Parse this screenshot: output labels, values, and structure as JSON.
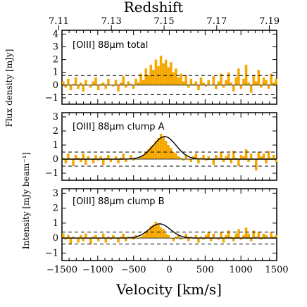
{
  "chart_data": [
    {
      "type": "bar",
      "panel": "total",
      "label": "[OIII] 88μm total",
      "xlim": [
        -1500,
        1500
      ],
      "ylim": [
        -1.5,
        4.3
      ],
      "yticks": [
        -1,
        0,
        1,
        2,
        3,
        4
      ],
      "bin_width": 35,
      "x": [
        -1500,
        -1465,
        -1430,
        -1395,
        -1360,
        -1325,
        -1290,
        -1255,
        -1220,
        -1185,
        -1150,
        -1115,
        -1080,
        -1045,
        -1010,
        -975,
        -940,
        -905,
        -870,
        -835,
        -800,
        -765,
        -730,
        -695,
        -660,
        -625,
        -590,
        -555,
        -520,
        -485,
        -450,
        -415,
        -380,
        -345,
        -310,
        -275,
        -240,
        -205,
        -170,
        -135,
        -100,
        -65,
        -30,
        5,
        40,
        75,
        110,
        145,
        180,
        215,
        250,
        285,
        320,
        355,
        390,
        425,
        460,
        495,
        530,
        565,
        600,
        635,
        670,
        705,
        740,
        775,
        810,
        845,
        880,
        915,
        950,
        985,
        1020,
        1055,
        1090,
        1125,
        1160,
        1195,
        1230,
        1265,
        1300,
        1335,
        1370,
        1405,
        1440,
        1475
      ],
      "values": [
        0.3,
        -0.2,
        0.5,
        -0.4,
        0.1,
        0.6,
        -0.3,
        0.2,
        -0.5,
        0.4,
        0.0,
        -0.2,
        0.3,
        0.6,
        -0.4,
        0.1,
        0.2,
        -0.3,
        0.5,
        0.0,
        -0.1,
        0.4,
        -0.5,
        0.2,
        0.7,
        -0.2,
        0.3,
        0.1,
        -0.3,
        0.5,
        0.2,
        0.9,
        0.4,
        1.3,
        0.8,
        1.6,
        1.2,
        2.0,
        1.5,
        2.3,
        1.7,
        2.0,
        1.4,
        1.8,
        1.0,
        1.3,
        0.6,
        0.9,
        0.3,
        0.8,
        -0.2,
        0.5,
        0.1,
        0.3,
        -0.4,
        0.6,
        0.2,
        -0.1,
        0.4,
        0.0,
        0.7,
        -0.3,
        0.3,
        0.9,
        -0.2,
        0.4,
        1.0,
        0.2,
        -0.5,
        0.6,
        1.3,
        -0.3,
        0.5,
        1.6,
        0.2,
        -0.6,
        0.8,
        0.3,
        1.2,
        -0.2,
        0.6,
        0.4,
        -0.3,
        0.9,
        0.2,
        0.5
      ],
      "noise_level": 0.75
    },
    {
      "type": "bar",
      "panel": "clump-a",
      "label": "[OIII] 88μm clump A",
      "xlim": [
        -1500,
        1500
      ],
      "ylim": [
        -1.5,
        3.3
      ],
      "yticks": [
        -1,
        0,
        1,
        2,
        3
      ],
      "bin_width": 35,
      "x": [
        -1500,
        -1465,
        -1430,
        -1395,
        -1360,
        -1325,
        -1290,
        -1255,
        -1220,
        -1185,
        -1150,
        -1115,
        -1080,
        -1045,
        -1010,
        -975,
        -940,
        -905,
        -870,
        -835,
        -800,
        -765,
        -730,
        -695,
        -660,
        -625,
        -590,
        -555,
        -520,
        -485,
        -450,
        -415,
        -380,
        -345,
        -310,
        -275,
        -240,
        -205,
        -170,
        -135,
        -100,
        -65,
        -30,
        5,
        40,
        75,
        110,
        145,
        180,
        215,
        250,
        285,
        320,
        355,
        390,
        425,
        460,
        495,
        530,
        565,
        600,
        635,
        670,
        705,
        740,
        775,
        810,
        845,
        880,
        915,
        950,
        985,
        1020,
        1055,
        1090,
        1125,
        1160,
        1195,
        1230,
        1265,
        1300,
        1335,
        1370,
        1405,
        1440,
        1475
      ],
      "values": [
        0.1,
        -0.3,
        0.4,
        0.0,
        -0.5,
        0.3,
        0.1,
        -0.2,
        0.4,
        -0.4,
        0.2,
        0.0,
        -0.3,
        0.3,
        -0.1,
        0.2,
        -0.4,
        0.1,
        0.3,
        -0.2,
        0.0,
        0.2,
        -0.3,
        0.1,
        0.4,
        -0.2,
        0.0,
        0.3,
        -0.1,
        0.1,
        0.0,
        0.2,
        0.3,
        0.5,
        0.7,
        0.9,
        1.0,
        1.3,
        1.5,
        1.8,
        1.6,
        1.3,
        1.0,
        0.8,
        0.5,
        0.4,
        0.2,
        0.1,
        -0.1,
        0.3,
        0.0,
        -0.2,
        0.2,
        0.4,
        -0.3,
        0.1,
        0.3,
        -0.1,
        0.2,
        0.0,
        -0.4,
        0.3,
        0.1,
        0.5,
        -0.2,
        0.2,
        0.4,
        -0.3,
        0.6,
        0.1,
        -0.5,
        0.3,
        0.2,
        0.7,
        -0.2,
        0.4,
        0.0,
        -0.8,
        0.5,
        0.2,
        0.4,
        -0.3,
        0.6,
        0.1,
        0.3,
        -0.2
      ],
      "fit": {
        "amplitude": 1.6,
        "center": -65,
        "sigma": 160
      },
      "noise_level": 0.5
    },
    {
      "type": "bar",
      "panel": "clump-b",
      "label": "[OIII] 88μm clump B",
      "xlim": [
        -1500,
        1500
      ],
      "ylim": [
        -1.5,
        3.3
      ],
      "yticks": [
        -1,
        0,
        1,
        2,
        3
      ],
      "bin_width": 35,
      "x": [
        -1500,
        -1465,
        -1430,
        -1395,
        -1360,
        -1325,
        -1290,
        -1255,
        -1220,
        -1185,
        -1150,
        -1115,
        -1080,
        -1045,
        -1010,
        -975,
        -940,
        -905,
        -870,
        -835,
        -800,
        -765,
        -730,
        -695,
        -660,
        -625,
        -590,
        -555,
        -520,
        -485,
        -450,
        -415,
        -380,
        -345,
        -310,
        -275,
        -240,
        -205,
        -170,
        -135,
        -100,
        -65,
        -30,
        5,
        40,
        75,
        110,
        145,
        180,
        215,
        250,
        285,
        320,
        355,
        390,
        425,
        460,
        495,
        530,
        565,
        600,
        635,
        670,
        705,
        740,
        775,
        810,
        845,
        880,
        915,
        950,
        985,
        1020,
        1055,
        1090,
        1125,
        1160,
        1195,
        1230,
        1265,
        1300,
        1335,
        1370,
        1405,
        1440,
        1475
      ],
      "values": [
        0.3,
        -0.1,
        0.2,
        -0.4,
        0.1,
        0.0,
        -0.3,
        0.2,
        -0.2,
        0.3,
        0.0,
        -0.4,
        0.1,
        0.2,
        -0.2,
        0.0,
        0.3,
        -0.3,
        0.1,
        -0.1,
        0.2,
        0.0,
        -0.3,
        0.1,
        0.3,
        -0.2,
        0.1,
        0.0,
        -0.1,
        0.2,
        0.0,
        0.1,
        0.2,
        0.4,
        0.5,
        0.8,
        0.9,
        1.1,
        0.9,
        0.7,
        0.6,
        0.3,
        0.2,
        0.0,
        -0.2,
        0.1,
        0.2,
        -0.1,
        0.0,
        0.3,
        -0.2,
        0.1,
        0.0,
        0.2,
        -0.3,
        0.1,
        -0.1,
        0.2,
        0.4,
        -0.2,
        0.3,
        0.0,
        -0.1,
        0.4,
        -0.3,
        0.2,
        0.5,
        0.1,
        -0.2,
        0.3,
        0.6,
        -0.1,
        0.2,
        0.7,
        0.3,
        -0.2,
        0.5,
        0.1,
        0.4,
        -0.1,
        0.3,
        0.2,
        0.0,
        0.4,
        0.1,
        0.2
      ],
      "fit": {
        "amplitude": 0.95,
        "center": -135,
        "sigma": 150
      },
      "noise_level": 0.4
    }
  ],
  "axes": {
    "title": "Redshift",
    "xlabel": "Velocity [km/s]",
    "ylabel_left": "Intensity [mJy beam⁻¹]",
    "ylabel_right": "Flux density [mJy]",
    "bottom_ticks": [
      "−1500",
      "−1000",
      "−500",
      "0",
      "500",
      "1000",
      "1500"
    ],
    "bottom_tick_values": [
      -1500,
      -1000,
      -500,
      0,
      500,
      1000,
      1500
    ],
    "top_ticks": [
      "7.11",
      "7.13",
      "7.15",
      "7.17",
      "7.19"
    ],
    "top_tick_redshifts": [
      7.11,
      7.13,
      7.15,
      7.17,
      7.19
    ],
    "systemic_redshift": 7.152
  },
  "colors": {
    "bars": "#F5A800",
    "fit_line": "#000000",
    "noise_line": "#000000"
  }
}
